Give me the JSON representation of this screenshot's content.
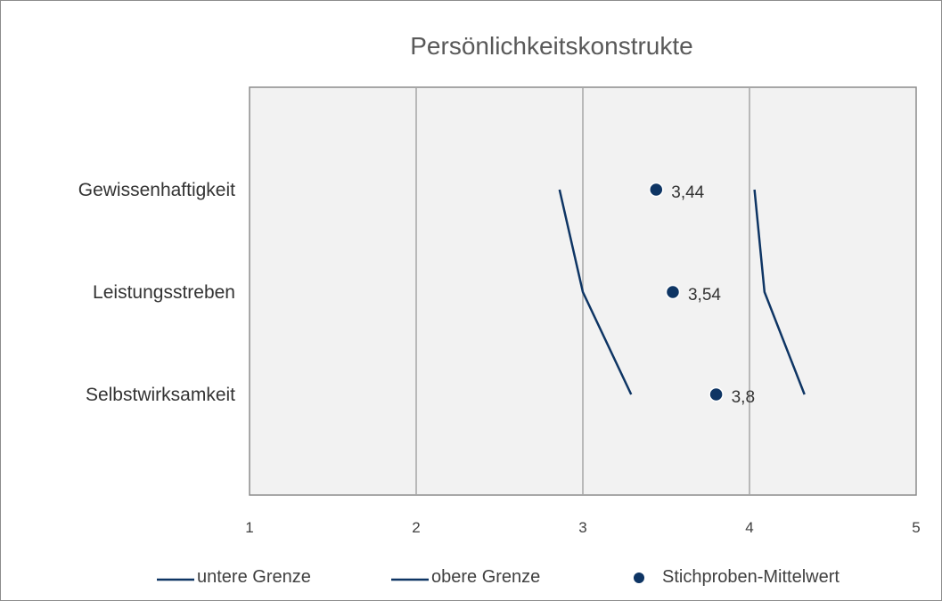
{
  "chart_data": {
    "type": "scatter",
    "title": "Persönlichkeitskonstrukte",
    "orientation": "horizontal",
    "categories": [
      "Gewissenhaftigkeit",
      "Leistungsstreben",
      "Selbstwirksamkeit"
    ],
    "xlim": [
      1,
      5
    ],
    "xticks": [
      "1",
      "2",
      "3",
      "4",
      "5"
    ],
    "series": [
      {
        "name": "untere Grenze",
        "kind": "line",
        "values": [
          2.86,
          3.0,
          3.29
        ]
      },
      {
        "name": "obere Grenze",
        "kind": "line",
        "values": [
          4.03,
          4.09,
          4.33
        ]
      },
      {
        "name": "Stichproben-Mittelwert",
        "kind": "marker",
        "values": [
          3.44,
          3.54,
          3.8
        ],
        "labels": [
          "3,44",
          "3,54",
          "3,8"
        ]
      }
    ],
    "grid": "vertical",
    "legend": "bottom",
    "colors": {
      "series": "#0e3564",
      "plot_background": "#f2f2f2",
      "grid": "#a6a6a6",
      "border": "#8c8c8c"
    }
  }
}
